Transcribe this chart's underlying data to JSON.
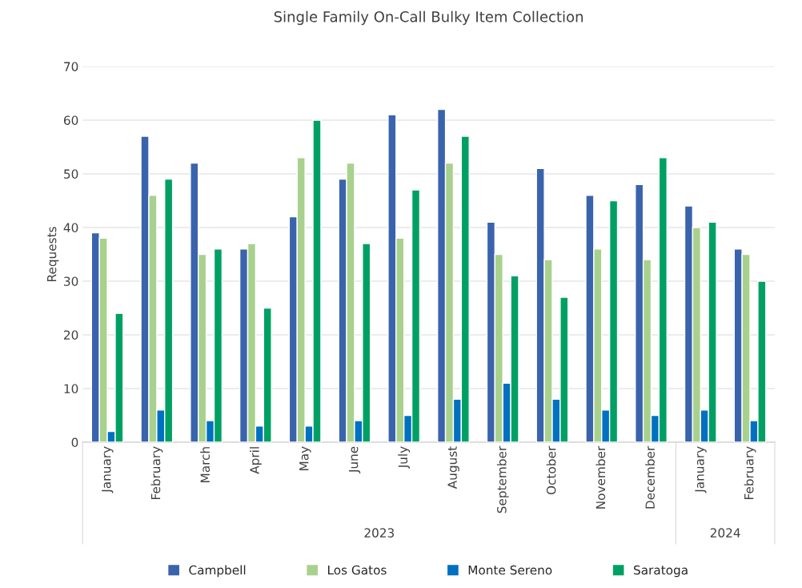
{
  "chart_data": {
    "type": "bar",
    "title": "Single Family On-Call Bulky Item Collection",
    "ylabel": "Requests",
    "categories": [
      "January",
      "February",
      "March",
      "April",
      "May",
      "June",
      "July",
      "August",
      "September",
      "October",
      "November",
      "December",
      "January",
      "February"
    ],
    "series": [
      {
        "name": "Campbell",
        "color": "#3a63ad",
        "values": [
          39,
          57,
          52,
          36,
          42,
          49,
          61,
          62,
          41,
          51,
          46,
          48,
          44,
          36
        ]
      },
      {
        "name": "Los Gatos",
        "color": "#a9d18e",
        "values": [
          38,
          46,
          35,
          37,
          53,
          52,
          38,
          52,
          35,
          34,
          36,
          34,
          40,
          35
        ]
      },
      {
        "name": "Monte Sereno",
        "color": "#0070c0",
        "values": [
          2,
          6,
          4,
          3,
          3,
          4,
          5,
          8,
          11,
          8,
          6,
          5,
          6,
          4
        ]
      },
      {
        "name": "Saratoga",
        "color": "#00a065",
        "values": [
          24,
          49,
          36,
          25,
          60,
          37,
          47,
          57,
          31,
          27,
          45,
          53,
          41,
          30
        ]
      }
    ],
    "ylim": [
      0,
      70
    ],
    "yticks": [
      0,
      10,
      20,
      30,
      40,
      50,
      60,
      70
    ],
    "grid": "y",
    "legend": "bottom",
    "annotations": [
      "2023",
      "2024"
    ]
  }
}
